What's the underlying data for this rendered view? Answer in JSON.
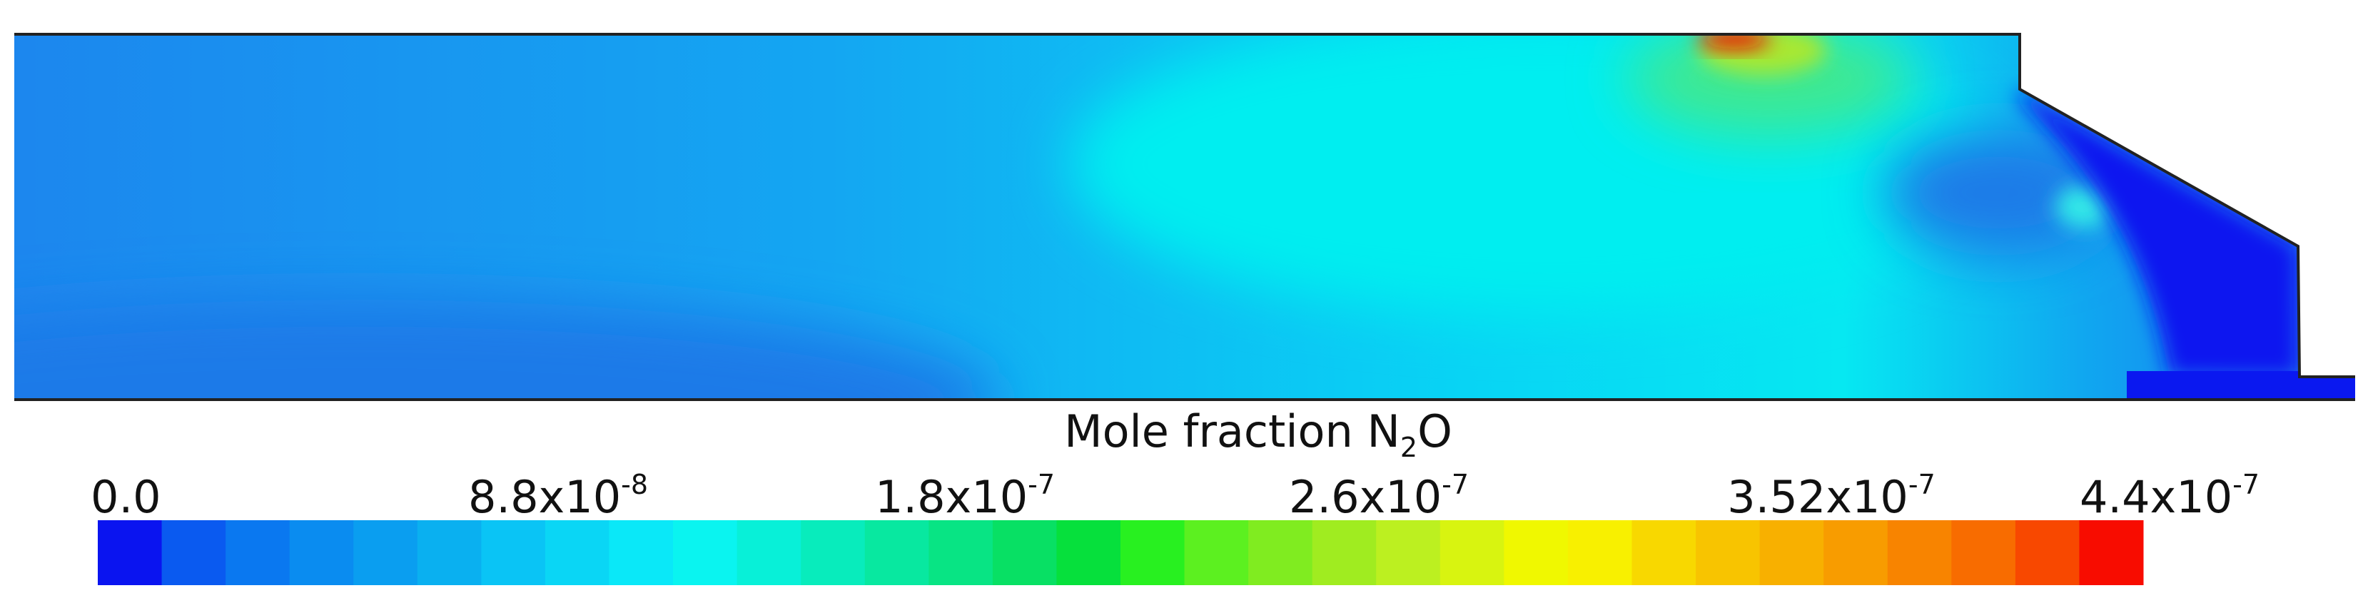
{
  "title": {
    "parts": [
      "Mole fraction N",
      "2",
      "O"
    ]
  },
  "colorbar": {
    "ticks": [
      {
        "base": "0.0"
      },
      {
        "base": "8.8x10",
        "exponent": "-8"
      },
      {
        "base": "1.8x10",
        "exponent": "-7"
      },
      {
        "base": "2.6x10",
        "exponent": "-7"
      },
      {
        "base": "3.52x10",
        "exponent": "-7"
      },
      {
        "base": "4.4x10",
        "exponent": "-7"
      }
    ],
    "colors": [
      "#0a14f0",
      "#0a5af0",
      "#0a78f0",
      "#0a8cf0",
      "#0a9ef0",
      "#0ab0f0",
      "#0ac4f5",
      "#0ad6f5",
      "#0ae8f8",
      "#0af4f0",
      "#08f0d8",
      "#08ecbc",
      "#08e8a0",
      "#08e484",
      "#08e064",
      "#06e03c",
      "#28f020",
      "#5cf020",
      "#80ec20",
      "#a0ec20",
      "#bcf020",
      "#d8f410",
      "#f0f800",
      "#f8f000",
      "#f8d800",
      "#f8c400",
      "#f8b000",
      "#f89c00",
      "#f88400",
      "#f86c00",
      "#f84800",
      "#f80c00"
    ]
  }
}
